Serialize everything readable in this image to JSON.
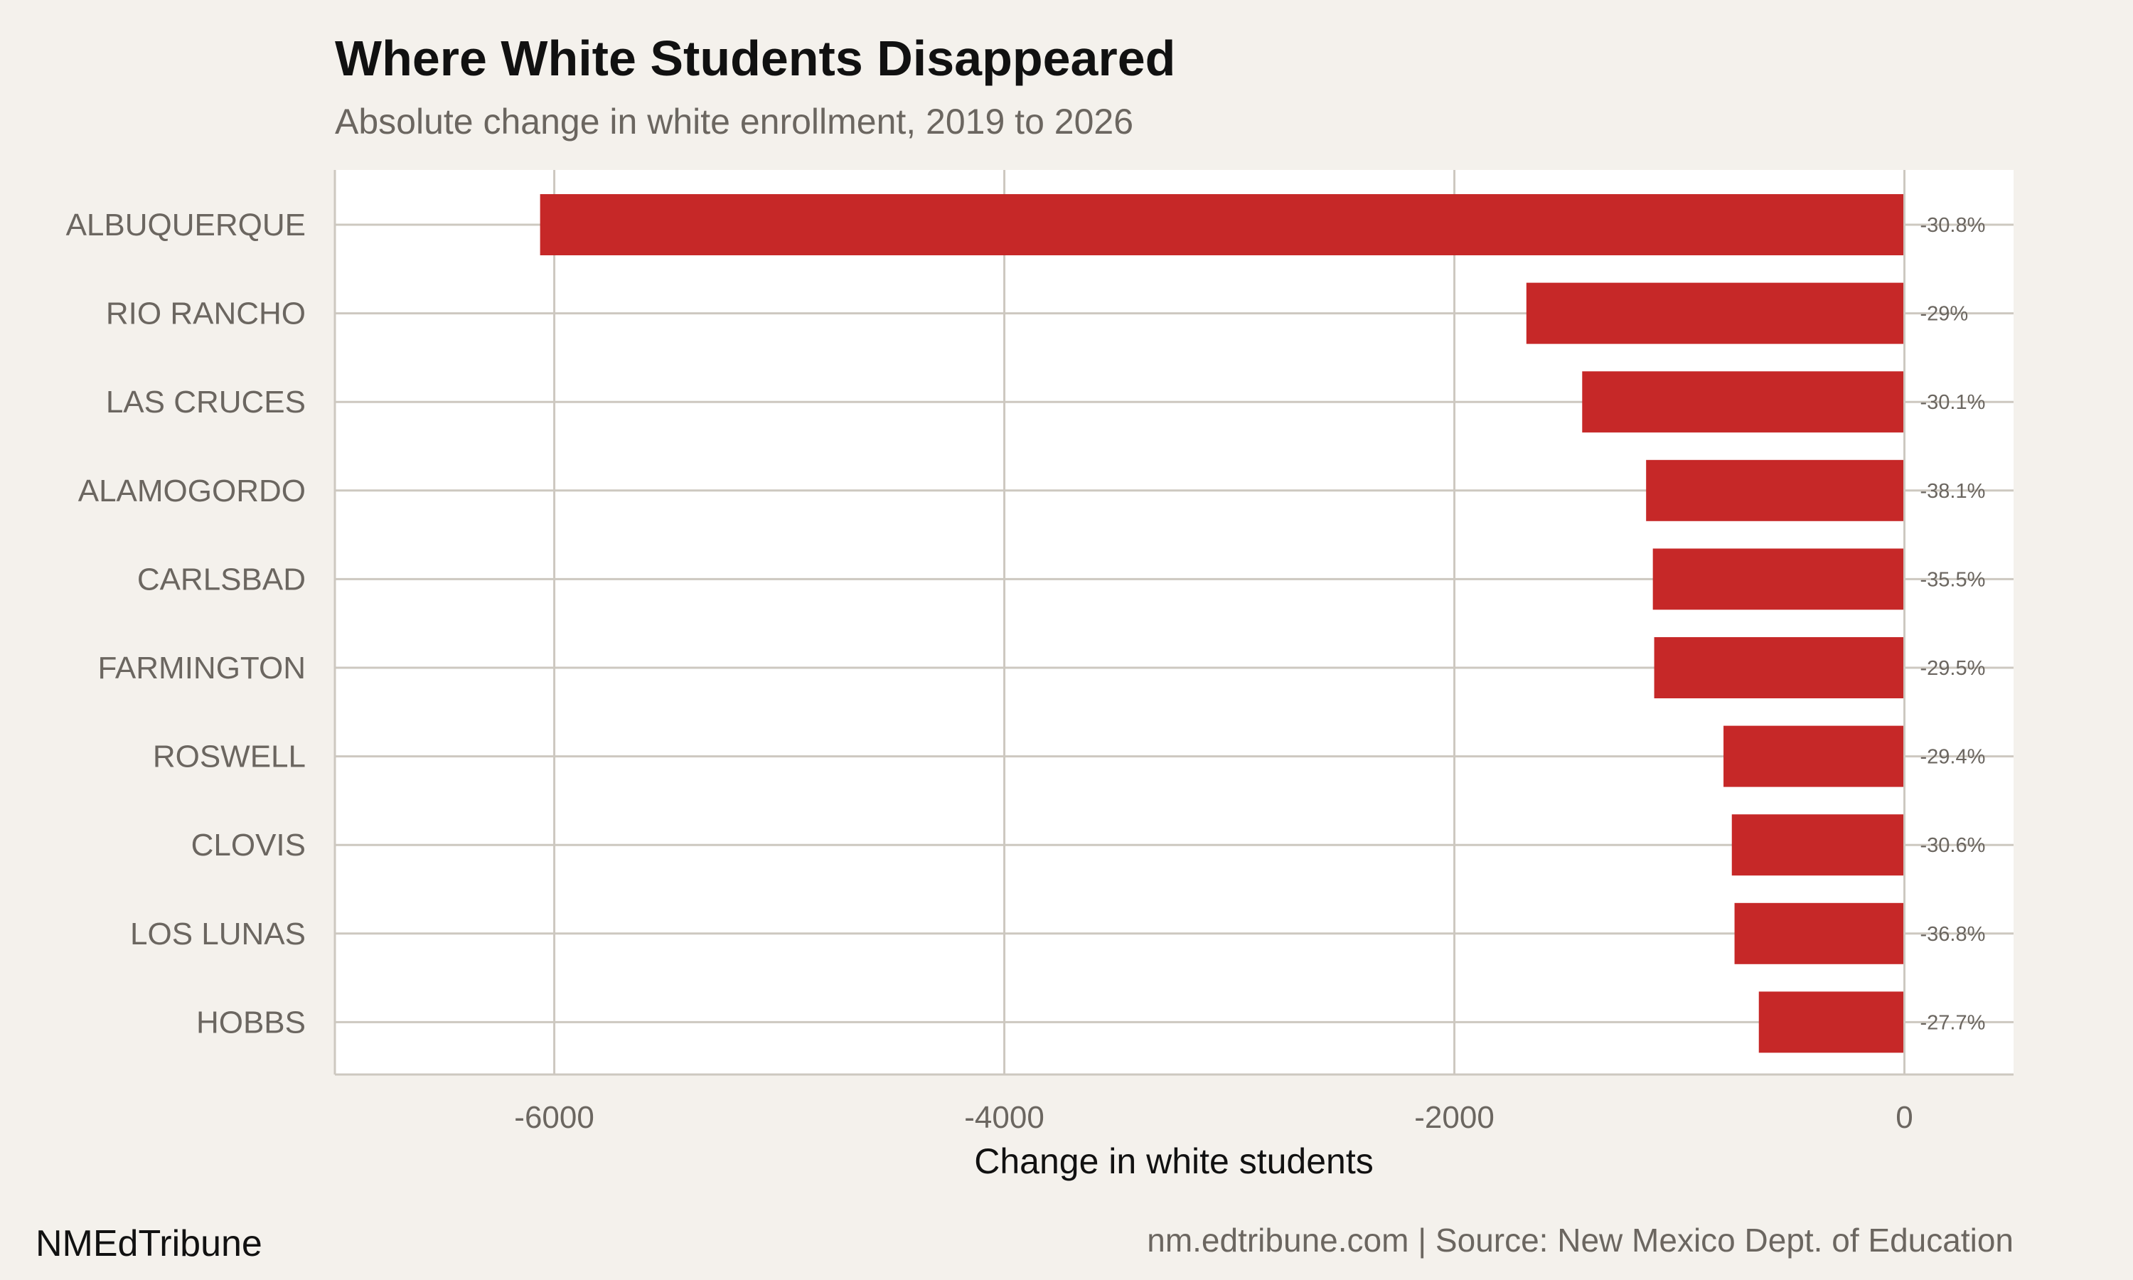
{
  "title": "Where White Students Disappeared",
  "subtitle": "Absolute change in white enrollment, 2019 to 2026",
  "brand": "NMEdTribune",
  "caption": "nm.edtribune.com | Source: New Mexico Dept. of Education",
  "colors": {
    "bar": "#c62828",
    "background": "#f4f1ec",
    "panel": "#ffffff",
    "grid": "#cdc8c0"
  },
  "chart_data": {
    "type": "bar",
    "orientation": "horizontal",
    "title": "Where White Students Disappeared",
    "subtitle": "Absolute change in white enrollment, 2019 to 2026",
    "xlabel": "Change in white students",
    "ylabel": "",
    "xlim": [
      -6975,
      485
    ],
    "xticks": [
      -6000,
      -4000,
      -2000,
      0
    ],
    "xtick_labels": [
      "-6000",
      "-4000",
      "-2000",
      "0"
    ],
    "grid": true,
    "categories": [
      "ALBUQUERQUE",
      "RIO RANCHO",
      "LAS CRUCES",
      "ALAMOGORDO",
      "CARLSBAD",
      "FARMINGTON",
      "ROSWELL",
      "CLOVIS",
      "LOS LUNAS",
      "HOBBS"
    ],
    "values": [
      -6063,
      -1680,
      -1432,
      -1148,
      -1118,
      -1112,
      -804,
      -767,
      -755,
      -647
    ],
    "pct_labels": [
      "-30.8%",
      "-29%",
      "-30.1%",
      "-38.1%",
      "-35.5%",
      "-29.5%",
      "-29.4%",
      "-30.6%",
      "-36.8%",
      "-27.7%"
    ]
  }
}
